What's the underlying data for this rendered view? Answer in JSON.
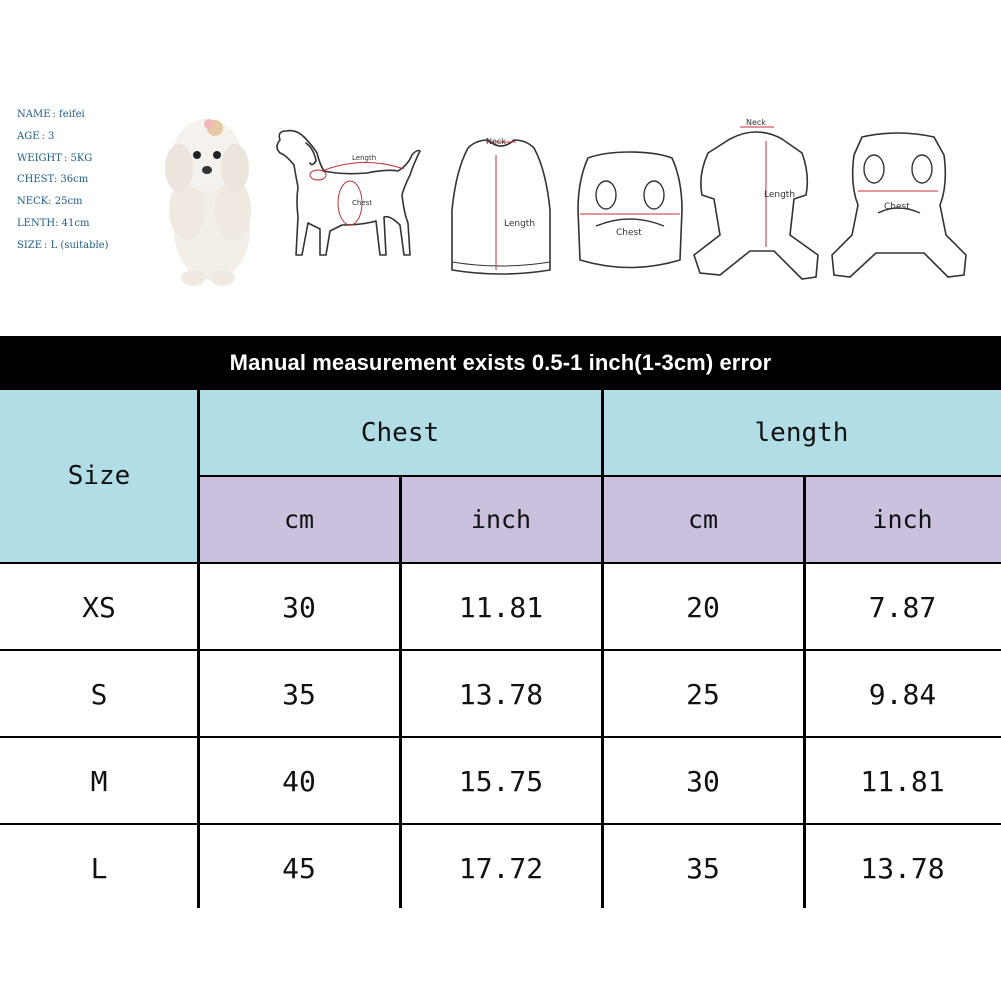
{
  "dog_info": [
    "NAME : feifei",
    "AGE : 3",
    "WEIGHT : 5KG",
    "CHEST: 36cm",
    "NECK: 25cm",
    "LENTH: 41cm",
    "SIZE : L (suitable)"
  ],
  "diagram_labels": {
    "dog_length": "Length",
    "dog_chest": "Chest",
    "vest_neck": "Neck",
    "vest_length": "Length",
    "vest_chest": "Chest",
    "suit_neck": "Neck",
    "suit_length": "Length",
    "suit_chest": "Chest"
  },
  "colors": {
    "header_blue": "#b1dde6",
    "header_purple": "#cbc0de",
    "banner_bg": "#000000",
    "label_red": "#c0303a",
    "info_text": "#1a5c88"
  },
  "banner": "Manual measurement exists 0.5-1 inch(1-3cm) error",
  "table": {
    "size_header": "Size",
    "chest_header": "Chest",
    "length_header": "length",
    "units": [
      "cm",
      "inch",
      "cm",
      "inch"
    ],
    "rows": [
      {
        "size": "XS",
        "chest_cm": "30",
        "chest_inch": "11.81",
        "length_cm": "20",
        "length_inch": "7.87"
      },
      {
        "size": "S",
        "chest_cm": "35",
        "chest_inch": "13.78",
        "length_cm": "25",
        "length_inch": "9.84"
      },
      {
        "size": "M",
        "chest_cm": "40",
        "chest_inch": "15.75",
        "length_cm": "30",
        "length_inch": "11.81"
      },
      {
        "size": "L",
        "chest_cm": "45",
        "chest_inch": "17.72",
        "length_cm": "35",
        "length_inch": "13.78"
      }
    ]
  }
}
